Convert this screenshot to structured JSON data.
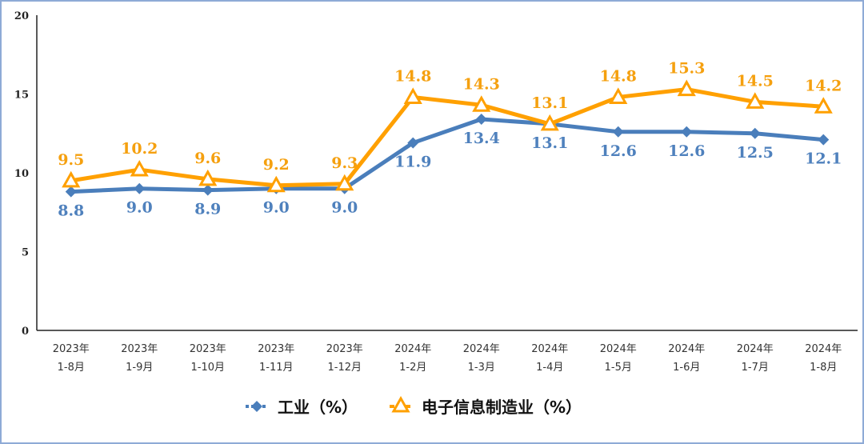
{
  "chart_data": {
    "type": "line",
    "title": "",
    "xlabel": "",
    "ylabel": "",
    "ylim": [
      0,
      20
    ],
    "yticks": [
      0,
      5,
      10,
      15,
      20
    ],
    "grid": false,
    "legend_position": "bottom",
    "categories": [
      [
        "2023年",
        "1-8月"
      ],
      [
        "2023年",
        "1-9月"
      ],
      [
        "2023年",
        "1-10月"
      ],
      [
        "2023年",
        "1-11月"
      ],
      [
        "2023年",
        "1-12月"
      ],
      [
        "2024年",
        "1-2月"
      ],
      [
        "2024年",
        "1-3月"
      ],
      [
        "2024年",
        "1-4月"
      ],
      [
        "2024年",
        "1-5月"
      ],
      [
        "2024年",
        "1-6月"
      ],
      [
        "2024年",
        "1-7月"
      ],
      [
        "2024年",
        "1-8月"
      ]
    ],
    "series": [
      {
        "name": "工业（%）",
        "color": "#4a7ebb",
        "label_color": "#4f81bd",
        "marker": "diamond",
        "values": [
          8.8,
          9.0,
          8.9,
          9.0,
          9.0,
          11.9,
          13.4,
          13.1,
          12.6,
          12.6,
          12.5,
          12.1
        ]
      },
      {
        "name": "电子信息制造业（%）",
        "color": "#ffa000",
        "label_color": "#f5a00f",
        "marker": "triangle",
        "values": [
          9.5,
          10.2,
          9.6,
          9.2,
          9.3,
          14.8,
          14.3,
          13.1,
          14.8,
          15.3,
          14.5,
          14.2
        ]
      }
    ]
  }
}
